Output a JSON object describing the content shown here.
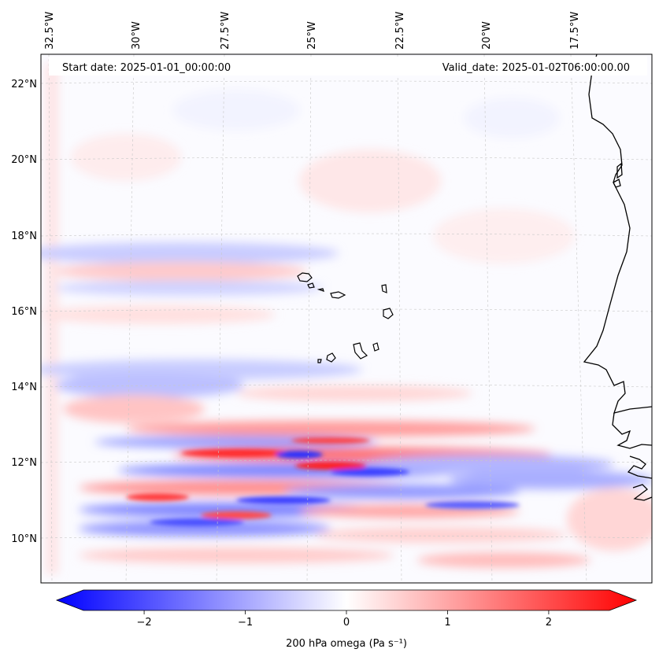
{
  "header": {
    "start_date": "Start date: 2025-01-01_00:00:00",
    "valid_date": "Valid_date: 2025-01-02T06:00:00.00"
  },
  "map": {
    "lon_labels": [
      "32.5°W",
      "30°W",
      "27.5°W",
      "25°W",
      "22.5°W",
      "20°W",
      "17.5°W"
    ],
    "lat_labels": [
      "22°N",
      "20°N",
      "18°N",
      "16°N",
      "14°N",
      "12°N",
      "10°N"
    ],
    "variable": "200 hPa omega",
    "units": "Pa s⁻¹"
  },
  "colorbar": {
    "ticks": [
      "−2",
      "−1",
      "0",
      "1",
      "2"
    ],
    "tick_values": [
      -2,
      -1,
      0,
      1,
      2
    ],
    "range": [
      -2.6,
      2.6
    ],
    "label": "200 hPa omega (Pa s⁻¹)",
    "colors": {
      "min": "#0000ff",
      "mid": "#ffffff",
      "max": "#ff0000"
    }
  }
}
